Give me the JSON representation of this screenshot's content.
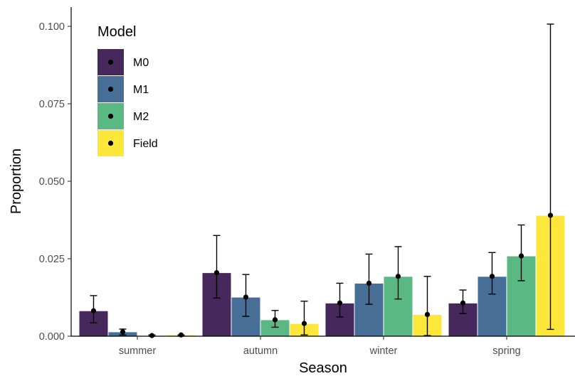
{
  "chart_data": {
    "type": "bar",
    "xlabel": "Season",
    "ylabel": "Proportion",
    "ylim": [
      0,
      0.104
    ],
    "yticks": [
      "0.000",
      "0.025",
      "0.050",
      "0.075",
      "0.100"
    ],
    "ytick_values": [
      0,
      0.025,
      0.05,
      0.075,
      0.1
    ],
    "categories": [
      "summer",
      "autumn",
      "winter",
      "spring"
    ],
    "legend": {
      "title": "Model",
      "placement": "top-left"
    },
    "series": [
      {
        "name": "M0",
        "color": "#440154",
        "fill": "#47285d",
        "values": [
          0.0082,
          0.0205,
          0.0107,
          0.0107
        ],
        "lower": [
          0.0043,
          0.0123,
          0.0062,
          0.0073
        ],
        "upper": [
          0.0131,
          0.0325,
          0.0171,
          0.0149
        ]
      },
      {
        "name": "M1",
        "color": "#3b528b",
        "fill": "#476e96",
        "values": [
          0.0014,
          0.0126,
          0.0171,
          0.0193
        ],
        "lower": [
          0.0004,
          0.0064,
          0.0103,
          0.0136
        ],
        "upper": [
          0.0023,
          0.0199,
          0.0265,
          0.027
        ]
      },
      {
        "name": "M2",
        "color": "#5ab883",
        "fill": "#5ab883",
        "values": [
          0.0002,
          0.0053,
          0.0193,
          0.0259
        ],
        "lower": [
          0.0,
          0.0029,
          0.012,
          0.0179
        ],
        "upper": [
          0.0004,
          0.0083,
          0.0289,
          0.0359
        ]
      },
      {
        "name": "Field",
        "color": "#fde725",
        "fill": "#fde73b",
        "values": [
          0.0004,
          0.0041,
          0.007,
          0.039
        ],
        "lower": [
          0.0,
          0.0004,
          0.0002,
          0.0022
        ],
        "upper": [
          0.0004,
          0.0113,
          0.0193,
          0.1007
        ]
      }
    ]
  }
}
